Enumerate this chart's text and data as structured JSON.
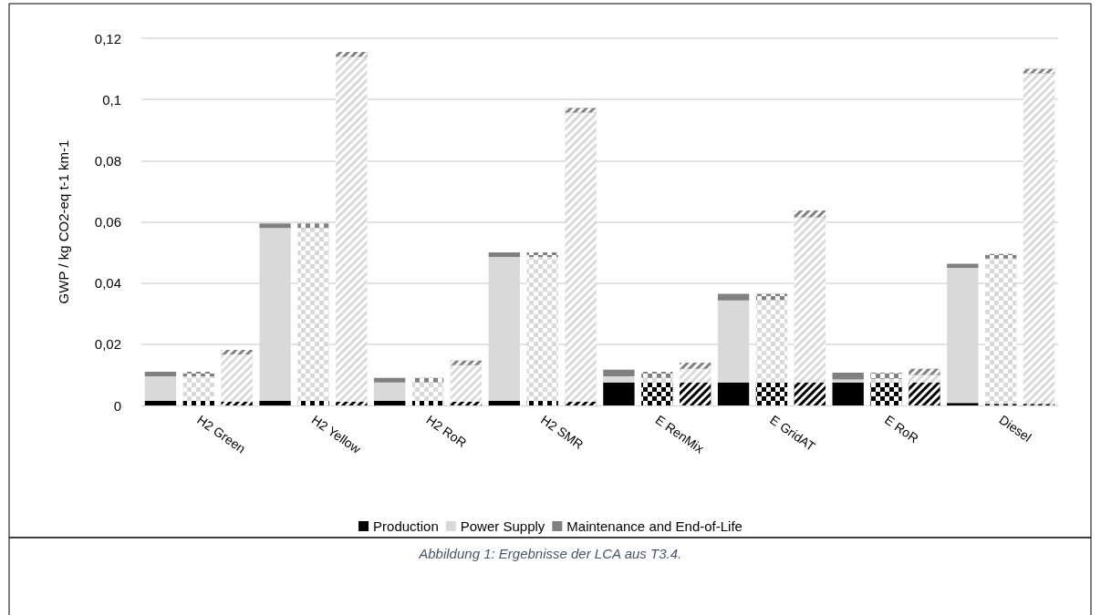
{
  "chart_data": {
    "type": "bar",
    "stacked": true,
    "ylabel": "GWP / kg CO2-eq t-1 km-1",
    "categories": [
      null,
      "H2 Green",
      null,
      null,
      "H2 Yellow",
      null,
      null,
      "H2 RoR",
      null,
      null,
      "H2 SMR",
      null,
      null,
      "E RenMix",
      null,
      null,
      "E GridAT",
      null,
      null,
      "E RoR",
      null,
      null,
      "Diesel",
      null
    ],
    "series": [
      {
        "name": "Production",
        "color": "#000000",
        "values": [
          0.0015,
          0.0015,
          0.0012,
          0.0015,
          0.0015,
          0.0012,
          0.0015,
          0.0015,
          0.0012,
          0.0015,
          0.0015,
          0.0012,
          0.0075,
          0.0075,
          0.0075,
          0.0075,
          0.0075,
          0.0075,
          0.0075,
          0.0075,
          0.0075,
          0.0008,
          0.0005,
          0.0005
        ]
      },
      {
        "name": "Power Supply",
        "color": "#d9d9d9",
        "values": [
          0.008,
          0.008,
          0.0155,
          0.0565,
          0.0565,
          0.1128,
          0.006,
          0.006,
          0.012,
          0.047,
          0.047,
          0.0945,
          0.002,
          0.0015,
          0.0045,
          0.0268,
          0.027,
          0.054,
          0.001,
          0.0012,
          0.0025,
          0.0442,
          0.0475,
          0.108
        ]
      },
      {
        "name": "Maintenance and End-of-Life",
        "color": "#808080",
        "values": [
          0.0015,
          0.0015,
          0.0015,
          0.0015,
          0.0015,
          0.0015,
          0.0015,
          0.0015,
          0.0015,
          0.0015,
          0.0015,
          0.0015,
          0.0022,
          0.002,
          0.002,
          0.0022,
          0.002,
          0.0022,
          0.0022,
          0.002,
          0.002,
          0.0013,
          0.0015,
          0.0015
        ]
      }
    ],
    "ylim": [
      0,
      0.12
    ],
    "yticks": [
      0,
      {
        "value": 0.02,
        "label": "0,02"
      },
      {
        "value": 0.04,
        "label": "0,04"
      },
      {
        "value": 0.06,
        "label": "0,06"
      },
      {
        "value": 0.08,
        "label": "0,08"
      },
      {
        "value": 0.1,
        "label": "0,1"
      },
      {
        "value": 0.12,
        "label": "0,12"
      }
    ],
    "grid": "y",
    "legend": "bottom",
    "annotations": [
      "Abbildung 1: Ergebnisse der LCA aus T3.4."
    ]
  }
}
